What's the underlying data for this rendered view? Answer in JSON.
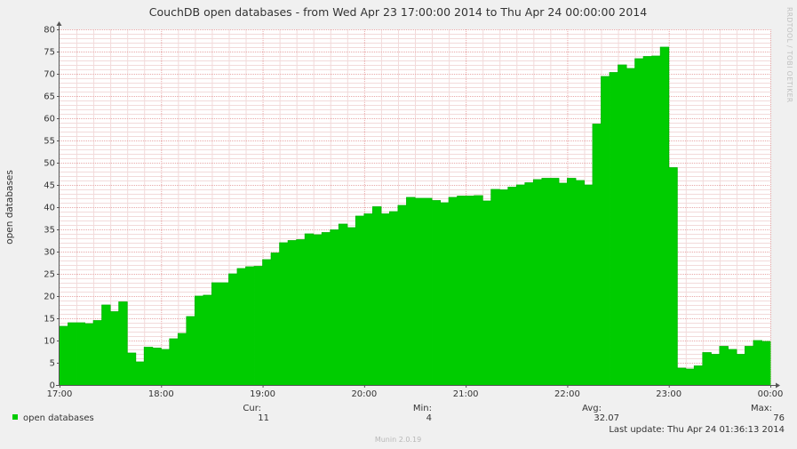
{
  "chart_data": {
    "type": "area",
    "title": "CouchDB open databases - from Wed Apr 23 17:00:00 2014 to Thu Apr 24 00:00:00 2014",
    "ylabel": "open databases",
    "side_label": "RRDTOOL / TOBI OETIKER",
    "ylim": [
      0,
      80
    ],
    "y_ticks": [
      0,
      5,
      10,
      15,
      20,
      25,
      30,
      35,
      40,
      45,
      50,
      55,
      60,
      65,
      70,
      75,
      80
    ],
    "x_ticks": [
      {
        "label": "17:00",
        "hour": 0
      },
      {
        "label": "18:00",
        "hour": 1
      },
      {
        "label": "19:00",
        "hour": 2
      },
      {
        "label": "20:00",
        "hour": 3
      },
      {
        "label": "21:00",
        "hour": 4
      },
      {
        "label": "22:00",
        "hour": 5
      },
      {
        "label": "23:00",
        "hour": 6
      },
      {
        "label": "00:00",
        "hour": 7
      }
    ],
    "grid": true,
    "series": [
      {
        "name": "open databases",
        "color": "#00cc00",
        "step_minutes": 5,
        "values": [
          13.2,
          14.0,
          14.0,
          13.8,
          14.5,
          18.0,
          16.5,
          18.7,
          7.2,
          5.2,
          8.5,
          8.3,
          8.0,
          10.4,
          11.6,
          15.4,
          20.0,
          20.2,
          23.0,
          23.0,
          25.0,
          26.2,
          26.6,
          26.7,
          28.2,
          29.7,
          32.0,
          32.5,
          32.7,
          34.0,
          33.8,
          34.3,
          34.9,
          36.2,
          35.4,
          38.0,
          38.5,
          40.1,
          38.5,
          39.0,
          40.4,
          42.2,
          42.0,
          42.0,
          41.5,
          41.0,
          42.2,
          42.5,
          42.5,
          42.6,
          41.4,
          44.0,
          43.9,
          44.5,
          45.0,
          45.5,
          46.2,
          46.5,
          46.5,
          45.4,
          46.5,
          46.0,
          45.0,
          58.7,
          69.4,
          70.3,
          72.0,
          71.2,
          73.4,
          73.9,
          74.0,
          76.0,
          48.9,
          3.8,
          3.6,
          4.3,
          7.3,
          6.9,
          8.7,
          8.0,
          6.9,
          8.7,
          10.0,
          9.8
        ]
      }
    ]
  },
  "legend": {
    "series_label": "open databases",
    "color": "#00cc00",
    "stats": [
      {
        "label": "Cur:",
        "value": "11"
      },
      {
        "label": "Min:",
        "value": "4"
      },
      {
        "label": "Avg:",
        "value": "32.07"
      },
      {
        "label": "Max:",
        "value": "76"
      }
    ],
    "last_update": "Last update: Thu Apr 24 01:36:13 2014"
  },
  "footer": "Munin 2.0.19"
}
